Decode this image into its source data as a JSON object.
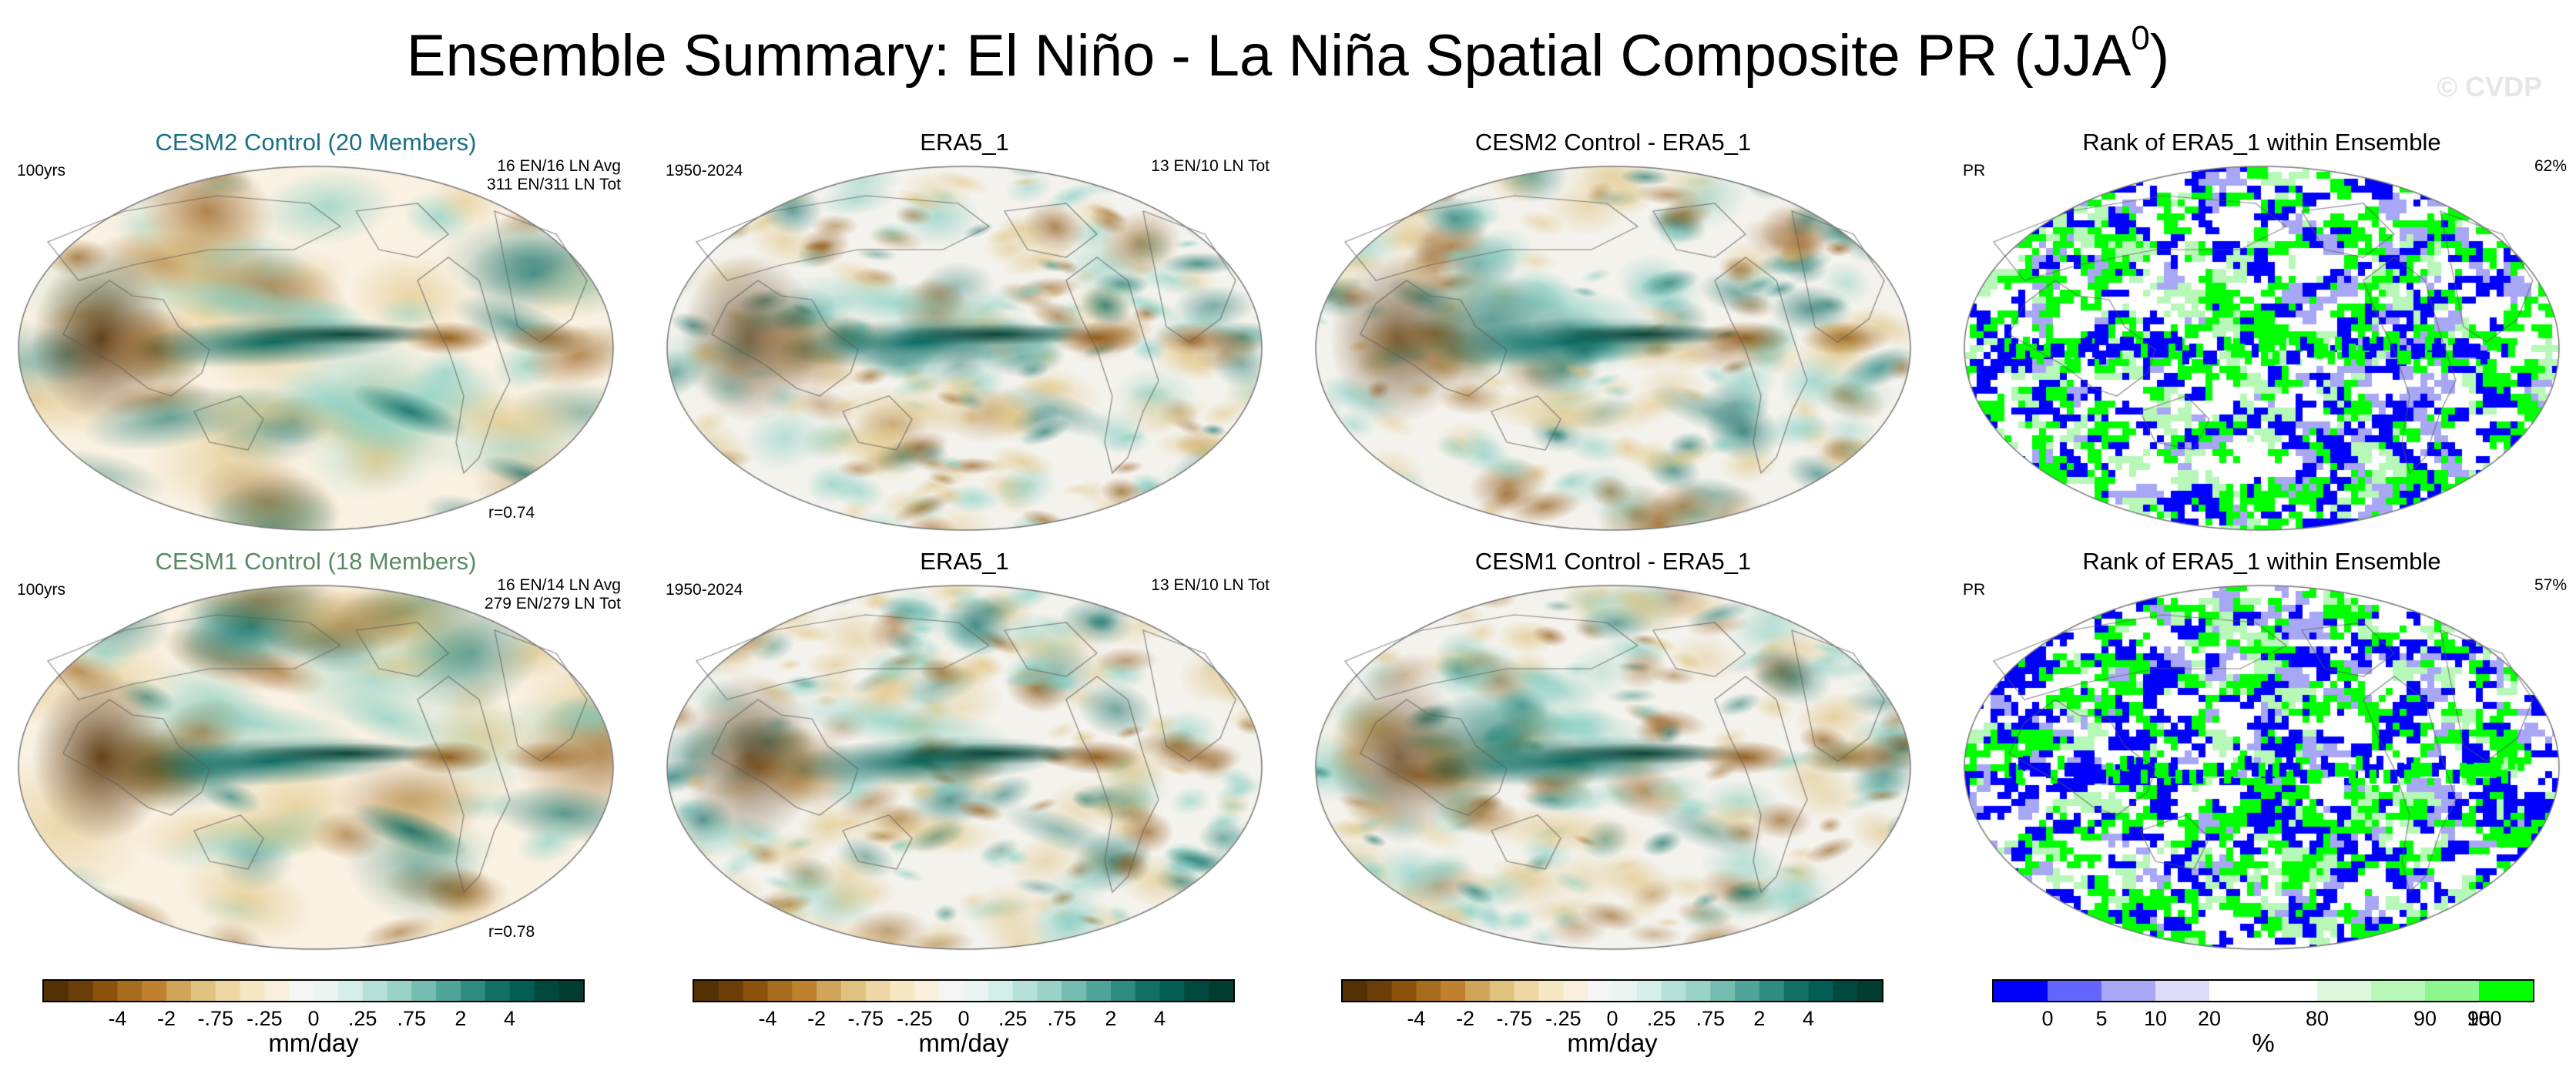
{
  "chart_data": {
    "type": "heatmap",
    "title": "Ensemble Summary: El Niño - La Niña Spatial Composite PR (JJA",
    "title_superscript": "0",
    "title_suffix": ")",
    "watermark": "© CVDP",
    "rows": [
      {
        "panels": [
          {
            "kind": "model",
            "title": "CESM2 Control (20 Members)",
            "title_color": "#1a6f86",
            "left_label": "100yrs",
            "right_label_1": "16 EN/16 LN Avg",
            "right_label_2": "311 EN/311 LN Tot",
            "corr_label": "r=0.74"
          },
          {
            "kind": "obs",
            "title": "ERA5_1",
            "left_label": "1950-2024",
            "right_label_1": "13 EN/10 LN Tot"
          },
          {
            "kind": "diff",
            "title": "CESM2 Control - ERA5_1"
          },
          {
            "kind": "rank",
            "title": "Rank of ERA5_1 within Ensemble",
            "left_label": "PR",
            "right_label_1": "62%"
          }
        ]
      },
      {
        "panels": [
          {
            "kind": "model",
            "title": "CESM1 Control (18 Members)",
            "title_color": "#5a8a63",
            "left_label": "100yrs",
            "right_label_1": "16 EN/14 LN Avg",
            "right_label_2": "279 EN/279 LN Tot",
            "corr_label": "r=0.78"
          },
          {
            "kind": "obs",
            "title": "ERA5_1",
            "left_label": "1950-2024",
            "right_label_1": "13 EN/10 LN Tot"
          },
          {
            "kind": "diff",
            "title": "CESM1 Control - ERA5_1"
          },
          {
            "kind": "rank",
            "title": "Rank of ERA5_1 within Ensemble",
            "left_label": "PR",
            "right_label_1": "57%"
          }
        ]
      }
    ],
    "colorbars": [
      {
        "name": "precip",
        "unit": "mm/day",
        "levels": [
          "-8",
          "-6",
          "-4",
          "-3",
          "-2",
          "-1",
          "-.75",
          "-.5",
          "-.25",
          "-.1",
          "0",
          "0",
          ".1",
          ".25",
          ".5",
          ".75",
          "1",
          "2",
          "3",
          "4",
          "6",
          "8"
        ],
        "tick_labels": [
          "-4",
          "-2",
          "-.75",
          "-.25",
          "0",
          ".25",
          ".75",
          "2",
          "4"
        ],
        "tick_positions": [
          3,
          5,
          7,
          9,
          11,
          13,
          15,
          17,
          19
        ],
        "colors": [
          "#543005",
          "#6b3e08",
          "#8c510a",
          "#a86c1f",
          "#bf812d",
          "#d0a559",
          "#dfc27d",
          "#eed6a5",
          "#f6e8c3",
          "#f8f0dd",
          "#f5f5f5",
          "#eaf5f3",
          "#d4eeea",
          "#b6e1da",
          "#98d2c8",
          "#75bcb0",
          "#4fa59a",
          "#2f8c82",
          "#137067",
          "#015e54",
          "#01493f",
          "#003c30"
        ]
      },
      {
        "name": "rank",
        "unit": "%",
        "tick_labels": [
          "0",
          "5",
          "10",
          "20",
          "80",
          "90",
          "95",
          "100"
        ],
        "colors": [
          "#0000ff",
          "#6464ff",
          "#a7a7f5",
          "#dcdcf8",
          "#ffffff",
          "#ffffff",
          "#ddf7dd",
          "#b7f7b7",
          "#8df68d",
          "#00ff00"
        ]
      }
    ]
  }
}
